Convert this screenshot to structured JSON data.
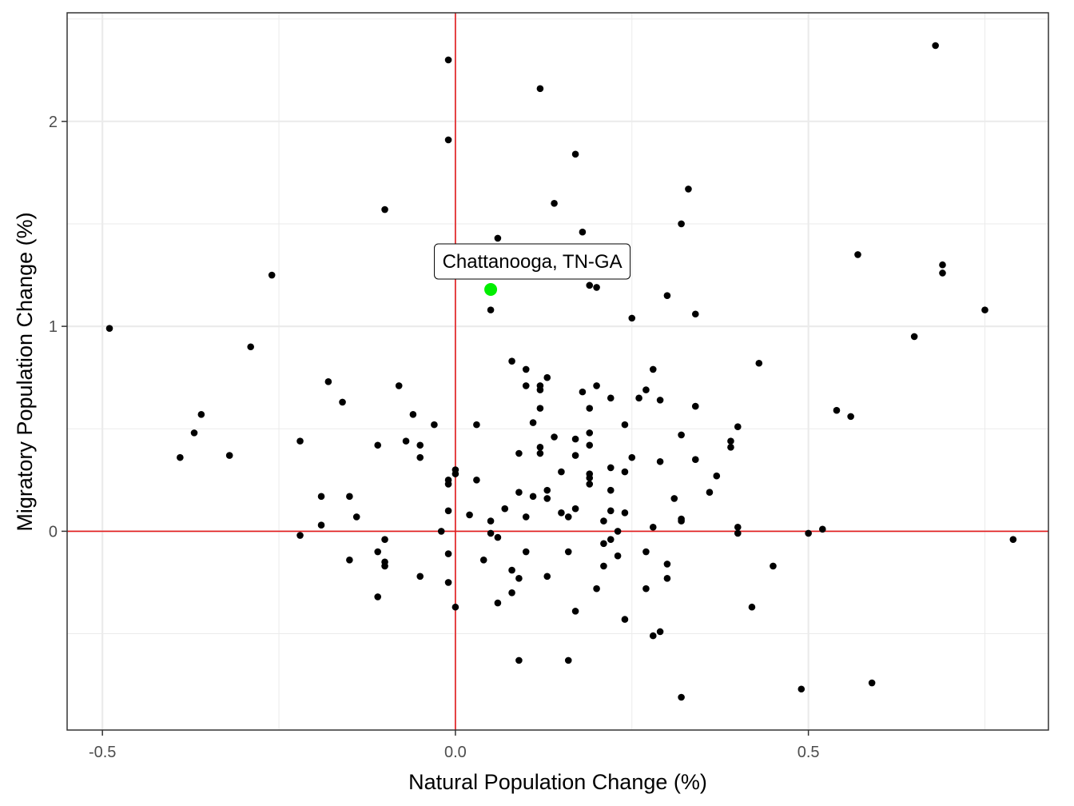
{
  "chart_data": {
    "type": "scatter",
    "title": "",
    "xlabel": "Natural Population Change (%)",
    "ylabel": "Migratory Population Change (%)",
    "xlim": [
      -0.55,
      0.84
    ],
    "ylim": [
      -0.97,
      2.53
    ],
    "x_ticks": [
      -0.5,
      0.0,
      0.5
    ],
    "x_tick_labels": [
      "-0.5",
      "0.0",
      "0.5"
    ],
    "y_ticks": [
      0,
      1,
      2
    ],
    "y_tick_labels": [
      "0",
      "1",
      "2"
    ],
    "grid": true,
    "reference_lines": {
      "x": 0,
      "y": 0,
      "color": "#e31a1c"
    },
    "colors": {
      "points": "#000000",
      "highlight": "#00ee00",
      "reference": "#e31a1c",
      "grid": "#ebebeb",
      "panel_border": "#333333"
    },
    "highlight": {
      "label": "Chattanooga, TN-GA",
      "x": 0.05,
      "y": 1.18
    },
    "points": [
      [
        -0.49,
        0.99
      ],
      [
        -0.39,
        0.36
      ],
      [
        -0.37,
        0.48
      ],
      [
        -0.36,
        0.57
      ],
      [
        -0.32,
        0.37
      ],
      [
        -0.29,
        0.9
      ],
      [
        -0.26,
        1.25
      ],
      [
        -0.22,
        0.44
      ],
      [
        -0.22,
        -0.02
      ],
      [
        -0.19,
        0.17
      ],
      [
        -0.19,
        0.03
      ],
      [
        -0.18,
        0.73
      ],
      [
        -0.16,
        0.63
      ],
      [
        -0.15,
        0.17
      ],
      [
        -0.15,
        -0.14
      ],
      [
        -0.14,
        0.07
      ],
      [
        -0.11,
        0.42
      ],
      [
        -0.11,
        -0.1
      ],
      [
        -0.11,
        -0.32
      ],
      [
        -0.1,
        1.57
      ],
      [
        -0.1,
        -0.04
      ],
      [
        -0.1,
        -0.15
      ],
      [
        -0.1,
        -0.17
      ],
      [
        -0.08,
        0.71
      ],
      [
        -0.07,
        0.44
      ],
      [
        -0.06,
        0.57
      ],
      [
        -0.05,
        0.42
      ],
      [
        -0.05,
        0.36
      ],
      [
        -0.05,
        -0.22
      ],
      [
        -0.03,
        0.52
      ],
      [
        -0.02,
        0.0
      ],
      [
        -0.01,
        2.3
      ],
      [
        -0.01,
        1.91
      ],
      [
        -0.01,
        0.25
      ],
      [
        -0.01,
        0.23
      ],
      [
        -0.01,
        0.1
      ],
      [
        -0.01,
        -0.11
      ],
      [
        -0.01,
        -0.25
      ],
      [
        0.0,
        0.3
      ],
      [
        0.0,
        0.28
      ],
      [
        0.0,
        -0.37
      ],
      [
        0.02,
        0.08
      ],
      [
        0.03,
        0.52
      ],
      [
        0.03,
        0.25
      ],
      [
        0.04,
        -0.14
      ],
      [
        0.05,
        1.08
      ],
      [
        0.05,
        0.05
      ],
      [
        0.05,
        -0.01
      ],
      [
        0.06,
        1.43
      ],
      [
        0.06,
        -0.03
      ],
      [
        0.06,
        -0.35
      ],
      [
        0.07,
        0.11
      ],
      [
        0.08,
        0.83
      ],
      [
        0.08,
        -0.19
      ],
      [
        0.08,
        -0.3
      ],
      [
        0.09,
        0.38
      ],
      [
        0.09,
        0.19
      ],
      [
        0.09,
        -0.23
      ],
      [
        0.09,
        -0.63
      ],
      [
        0.1,
        0.79
      ],
      [
        0.1,
        0.71
      ],
      [
        0.1,
        0.07
      ],
      [
        0.1,
        -0.1
      ],
      [
        0.11,
        0.53
      ],
      [
        0.11,
        0.17
      ],
      [
        0.12,
        2.16
      ],
      [
        0.12,
        0.71
      ],
      [
        0.12,
        0.69
      ],
      [
        0.12,
        0.6
      ],
      [
        0.12,
        0.41
      ],
      [
        0.12,
        0.38
      ],
      [
        0.13,
        0.75
      ],
      [
        0.13,
        0.2
      ],
      [
        0.13,
        0.16
      ],
      [
        0.13,
        -0.22
      ],
      [
        0.14,
        1.6
      ],
      [
        0.14,
        0.46
      ],
      [
        0.15,
        0.29
      ],
      [
        0.15,
        0.09
      ],
      [
        0.16,
        0.07
      ],
      [
        0.16,
        -0.1
      ],
      [
        0.16,
        -0.63
      ],
      [
        0.17,
        1.84
      ],
      [
        0.17,
        0.45
      ],
      [
        0.17,
        0.37
      ],
      [
        0.17,
        0.11
      ],
      [
        0.17,
        -0.39
      ],
      [
        0.18,
        1.46
      ],
      [
        0.18,
        0.68
      ],
      [
        0.19,
        1.2
      ],
      [
        0.19,
        0.6
      ],
      [
        0.19,
        0.48
      ],
      [
        0.19,
        0.42
      ],
      [
        0.19,
        0.28
      ],
      [
        0.19,
        0.26
      ],
      [
        0.19,
        0.23
      ],
      [
        0.2,
        1.19
      ],
      [
        0.2,
        0.71
      ],
      [
        0.2,
        -0.28
      ],
      [
        0.21,
        0.05
      ],
      [
        0.21,
        -0.06
      ],
      [
        0.21,
        -0.17
      ],
      [
        0.22,
        0.65
      ],
      [
        0.22,
        0.31
      ],
      [
        0.22,
        0.2
      ],
      [
        0.22,
        0.1
      ],
      [
        0.22,
        -0.04
      ],
      [
        0.23,
        0.0
      ],
      [
        0.23,
        -0.12
      ],
      [
        0.24,
        0.52
      ],
      [
        0.24,
        0.29
      ],
      [
        0.24,
        0.09
      ],
      [
        0.24,
        -0.43
      ],
      [
        0.25,
        1.04
      ],
      [
        0.25,
        0.36
      ],
      [
        0.26,
        0.65
      ],
      [
        0.27,
        0.69
      ],
      [
        0.27,
        -0.1
      ],
      [
        0.27,
        -0.28
      ],
      [
        0.28,
        0.79
      ],
      [
        0.28,
        0.02
      ],
      [
        0.28,
        -0.51
      ],
      [
        0.29,
        0.64
      ],
      [
        0.29,
        0.34
      ],
      [
        0.29,
        -0.49
      ],
      [
        0.3,
        1.15
      ],
      [
        0.3,
        -0.16
      ],
      [
        0.3,
        -0.23
      ],
      [
        0.31,
        0.16
      ],
      [
        0.32,
        1.5
      ],
      [
        0.32,
        0.47
      ],
      [
        0.32,
        0.06
      ],
      [
        0.32,
        0.05
      ],
      [
        0.32,
        -0.81
      ],
      [
        0.33,
        1.67
      ],
      [
        0.34,
        1.06
      ],
      [
        0.34,
        0.61
      ],
      [
        0.34,
        0.35
      ],
      [
        0.36,
        0.19
      ],
      [
        0.37,
        0.27
      ],
      [
        0.39,
        0.44
      ],
      [
        0.39,
        0.41
      ],
      [
        0.4,
        0.51
      ],
      [
        0.4,
        0.02
      ],
      [
        0.4,
        -0.01
      ],
      [
        0.42,
        -0.37
      ],
      [
        0.43,
        0.82
      ],
      [
        0.45,
        -0.17
      ],
      [
        0.49,
        -0.77
      ],
      [
        0.5,
        -0.01
      ],
      [
        0.52,
        0.01
      ],
      [
        0.54,
        0.59
      ],
      [
        0.56,
        0.56
      ],
      [
        0.57,
        1.35
      ],
      [
        0.59,
        -0.74
      ],
      [
        0.65,
        0.95
      ],
      [
        0.68,
        2.37
      ],
      [
        0.69,
        1.3
      ],
      [
        0.69,
        1.26
      ],
      [
        0.75,
        1.08
      ],
      [
        0.79,
        -0.04
      ]
    ]
  }
}
